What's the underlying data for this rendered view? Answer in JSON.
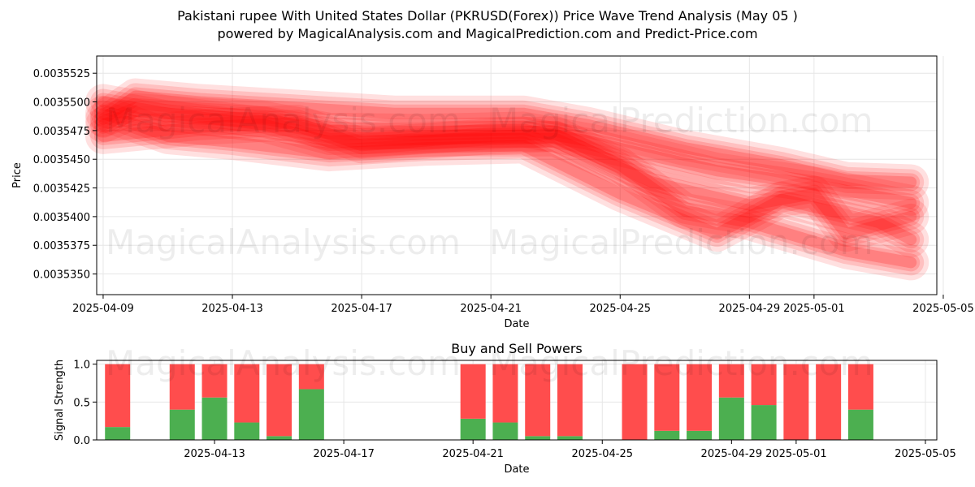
{
  "title_line1": "Pakistani rupee With United States Dollar (PKRUSD(Forex)) Price Wave Trend Analysis (May 05 )",
  "title_line2": "powered by MagicalAnalysis.com and MagicalPrediction.com and Predict-Price.com",
  "watermarks": [
    "MagicalAnalysis.com",
    "MagicalPrediction.com"
  ],
  "colors": {
    "wave": "#ff0000",
    "buy": "#4caf50",
    "sell": "#ff4d4d",
    "grid": "#e6e6e6"
  },
  "chart_data": [
    {
      "type": "line",
      "title": "",
      "xlabel": "Date",
      "ylabel": "Price",
      "x_ticks": [
        "2025-04-09",
        "2025-04-13",
        "2025-04-17",
        "2025-04-21",
        "2025-04-25",
        "2025-04-29",
        "2025-05-01",
        "2025-05-05"
      ],
      "y_ticks": [
        "0.0035350",
        "0.0035375",
        "0.0035400",
        "0.0035425",
        "0.0035450",
        "0.0035475",
        "0.0035500",
        "0.0035525"
      ],
      "xlim": [
        "2025-04-08",
        "2025-05-05"
      ],
      "ylim": [
        0.0035332,
        0.003554
      ],
      "grid": true,
      "series": [
        {
          "x": [
            "2025-04-09",
            "2025-04-10",
            "2025-04-12",
            "2025-04-14",
            "2025-04-16",
            "2025-04-19",
            "2025-04-22",
            "2025-04-24",
            "2025-04-26",
            "2025-04-28",
            "2025-05-01",
            "2025-05-04"
          ],
          "y": [
            0.003548,
            0.0035492,
            0.0035488,
            0.0035485,
            0.0035475,
            0.0035474,
            0.0035476,
            0.0035466,
            0.0035453,
            0.003544,
            0.0035428,
            0.0035412
          ]
        },
        {
          "x": [
            "2025-04-09",
            "2025-04-11",
            "2025-04-14",
            "2025-04-16",
            "2025-04-20",
            "2025-04-23",
            "2025-04-26",
            "2025-04-29",
            "2025-05-01",
            "2025-05-02",
            "2025-05-04"
          ],
          "y": [
            0.00355,
            0.003549,
            0.003548,
            0.0035465,
            0.0035468,
            0.0035468,
            0.003543,
            0.003541,
            0.003542,
            0.0035385,
            0.00354
          ]
        },
        {
          "x": [
            "2025-04-09",
            "2025-04-12",
            "2025-04-15",
            "2025-04-17",
            "2025-04-21",
            "2025-04-23",
            "2025-04-25",
            "2025-04-27",
            "2025-04-29",
            "2025-05-02",
            "2025-05-04"
          ],
          "y": [
            0.003547,
            0.0035478,
            0.0035482,
            0.0035462,
            0.003547,
            0.0035472,
            0.0035445,
            0.0035405,
            0.0035395,
            0.003537,
            0.003536
          ]
        },
        {
          "x": [
            "2025-04-09",
            "2025-04-11",
            "2025-04-13",
            "2025-04-16",
            "2025-04-19",
            "2025-04-22",
            "2025-04-25",
            "2025-04-28",
            "2025-04-30",
            "2025-05-03",
            "2025-05-04"
          ],
          "y": [
            0.003549,
            0.003547,
            0.0035465,
            0.0035455,
            0.003546,
            0.0035462,
            0.003542,
            0.0035385,
            0.0035415,
            0.0035395,
            0.003538
          ]
        },
        {
          "x": [
            "2025-04-09",
            "2025-04-10",
            "2025-04-12",
            "2025-04-15",
            "2025-04-18",
            "2025-04-22",
            "2025-04-24",
            "2025-04-27",
            "2025-04-30",
            "2025-05-02",
            "2025-05-04"
          ],
          "y": [
            0.0035485,
            0.0035505,
            0.00355,
            0.0035495,
            0.003549,
            0.003549,
            0.003548,
            0.003546,
            0.0035445,
            0.0035432,
            0.003543
          ]
        }
      ]
    },
    {
      "type": "bar",
      "title": "Buy and Sell Powers",
      "xlabel": "Date",
      "ylabel": "Signal Strength",
      "x_ticks": [
        "2025-04-13",
        "2025-04-17",
        "2025-04-21",
        "2025-04-25",
        "2025-04-29",
        "2025-05-01",
        "2025-05-05"
      ],
      "y_ticks": [
        "0.0",
        "0.5",
        "1.0"
      ],
      "xlim": [
        "2025-04-08",
        "2025-05-05"
      ],
      "ylim": [
        0,
        1.05
      ],
      "categories": [
        "2025-04-10",
        "2025-04-12",
        "2025-04-13",
        "2025-04-14",
        "2025-04-15",
        "2025-04-16",
        "2025-04-21",
        "2025-04-22",
        "2025-04-23",
        "2025-04-24",
        "2025-04-26",
        "2025-04-27",
        "2025-04-28",
        "2025-04-29",
        "2025-04-30",
        "2025-05-01",
        "2025-05-02",
        "2025-05-03"
      ],
      "series": [
        {
          "name": "Buy",
          "values": [
            0.17,
            0.4,
            0.56,
            0.23,
            0.05,
            0.67,
            0.28,
            0.23,
            0.05,
            0.05,
            0.0,
            0.12,
            0.12,
            0.56,
            0.46,
            0.0,
            0.0,
            0.4
          ]
        },
        {
          "name": "Sell",
          "values": [
            0.83,
            0.6,
            0.44,
            0.77,
            0.95,
            0.33,
            0.72,
            0.77,
            0.95,
            0.95,
            1.0,
            0.88,
            0.88,
            0.44,
            0.54,
            1.0,
            1.0,
            0.6
          ]
        }
      ]
    }
  ]
}
